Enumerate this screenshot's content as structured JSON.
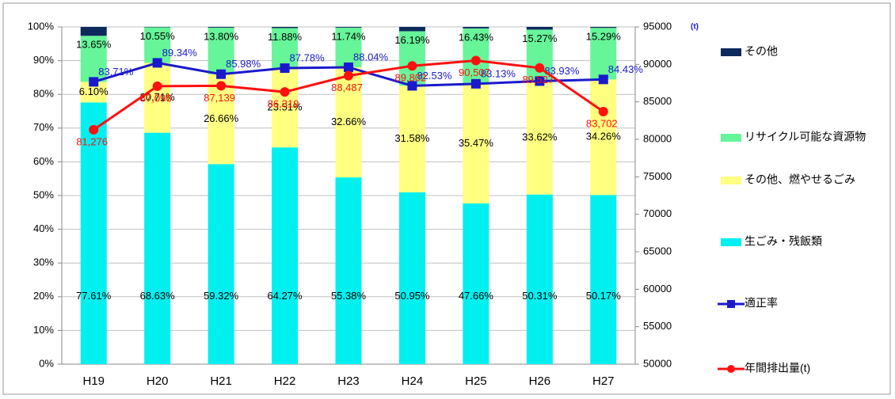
{
  "chart_data": {
    "type": "bar",
    "categories": [
      "H19",
      "H20",
      "H21",
      "H22",
      "H23",
      "H24",
      "H25",
      "H26",
      "H27"
    ],
    "series": [
      {
        "name": "生ごみ・残飯類",
        "type": "bar",
        "color": "#00f0f0",
        "values": [
          77.61,
          68.63,
          59.32,
          64.27,
          55.38,
          50.95,
          47.66,
          50.31,
          50.17
        ],
        "value_labels": [
          "77.61%",
          "68.63%",
          "59.32%",
          "64.27%",
          "55.38%",
          "50.95%",
          "47.66%",
          "50.31%",
          "50.17%"
        ]
      },
      {
        "name": "その他、燃やせるごみ",
        "type": "bar",
        "color": "#ffff80",
        "values": [
          6.1,
          20.71,
          26.66,
          23.51,
          32.66,
          31.58,
          35.47,
          33.62,
          34.26
        ],
        "value_labels": [
          "6.10%",
          "20.71%",
          "26.66%",
          "23.51%",
          "32.66%",
          "31.58%",
          "35.47%",
          "33.62%",
          "34.26%"
        ]
      },
      {
        "name": "リサイクル可能な資源物",
        "type": "bar",
        "color": "#66f599",
        "values": [
          13.65,
          10.55,
          13.8,
          11.88,
          11.74,
          16.19,
          16.43,
          15.27,
          15.29
        ],
        "value_labels": [
          "13.65%",
          "10.55%",
          "13.80%",
          "11.88%",
          "11.74%",
          "16.19%",
          "16.43%",
          "15.27%",
          "15.29%"
        ]
      },
      {
        "name": "その他",
        "type": "bar",
        "color": "#0d2a5c",
        "values": [
          2.64,
          0.11,
          0.22,
          0.34,
          0.22,
          1.28,
          0.44,
          0.8,
          0.28
        ]
      },
      {
        "name": "適正率",
        "type": "line",
        "color": "#1a1acc",
        "marker": "square",
        "values": [
          83.71,
          89.34,
          85.98,
          87.78,
          88.04,
          82.53,
          83.13,
          83.93,
          84.43
        ],
        "value_labels": [
          "83.71%",
          "89.34%",
          "85.98%",
          "87.78%",
          "88.04%",
          "82.53%",
          "83.13%",
          "83.93%",
          "84.43%"
        ]
      },
      {
        "name": "年間排出量(t)",
        "type": "line",
        "axis": "y2",
        "color": "#ff1010",
        "marker": "circle",
        "values": [
          81276,
          87096,
          87139,
          86319,
          88487,
          89802,
          90507,
          89527,
          83702
        ],
        "value_labels": [
          "81,276",
          "87,096",
          "87,139",
          "86,319",
          "88,487",
          "89,802",
          "90,507",
          "89,527",
          "83,702"
        ]
      }
    ],
    "ylim": [
      0,
      100
    ],
    "yticks": [
      {
        "value": 0,
        "label": "0%"
      },
      {
        "value": 10,
        "label": "10%"
      },
      {
        "value": 20,
        "label": "20%"
      },
      {
        "value": 30,
        "label": "30%"
      },
      {
        "value": 40,
        "label": "40%"
      },
      {
        "value": 50,
        "label": "50%"
      },
      {
        "value": 60,
        "label": "60%"
      },
      {
        "value": 70,
        "label": "70%"
      },
      {
        "value": 80,
        "label": "80%"
      },
      {
        "value": 90,
        "label": "90%"
      },
      {
        "value": 100,
        "label": "100%"
      }
    ],
    "y2lim": [
      50000,
      95000
    ],
    "y2ticks": [
      50000,
      55000,
      60000,
      65000,
      70000,
      75000,
      80000,
      85000,
      90000,
      95000
    ],
    "y2label": "(t)",
    "grid": true
  }
}
